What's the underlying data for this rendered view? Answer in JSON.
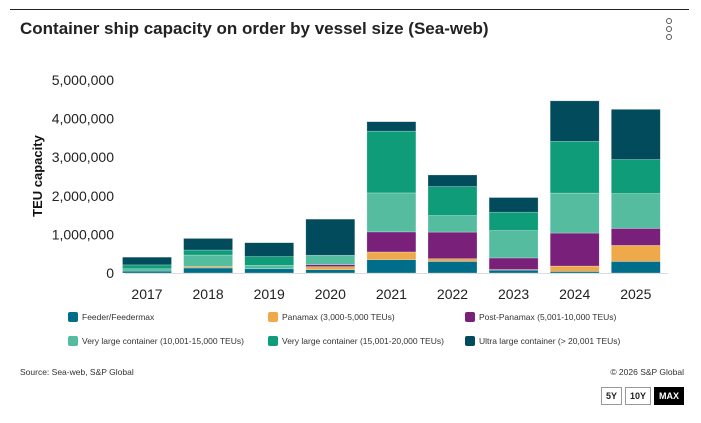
{
  "title": "Container ship capacity on order by vessel size (Sea-web)",
  "menu_icon": "kebab-menu-icon",
  "source": "Source: Sea-web, S&P Global",
  "copyright": "© 2026 S&P Global",
  "range_buttons": [
    {
      "label": "5Y",
      "active": false
    },
    {
      "label": "10Y",
      "active": false
    },
    {
      "label": "MAX",
      "active": true
    }
  ],
  "chart_data": {
    "type": "bar",
    "stacked": true,
    "title": "Container ship capacity on order by vessel size (Sea-web)",
    "xlabel": "",
    "ylabel": "TEU capacity",
    "ylim": [
      0,
      5000000
    ],
    "yticks": [
      0,
      1000000,
      2000000,
      3000000,
      4000000,
      5000000
    ],
    "ytick_labels": [
      "0",
      "1,000,000",
      "2,000,000",
      "3,000,000",
      "4,000,000",
      "5,000,000"
    ],
    "grid": false,
    "legend_position": "bottom",
    "categories": [
      "2017",
      "2018",
      "2019",
      "2020",
      "2021",
      "2022",
      "2023",
      "2024",
      "2025"
    ],
    "series": [
      {
        "name": "Feeder/Feedermax",
        "color": "#006e8a",
        "values": [
          50000,
          130000,
          110000,
          85000,
          345000,
          300000,
          75000,
          40000,
          300000
        ]
      },
      {
        "name": "Panamax (3,000-5,000 TEUs)",
        "color": "#f0a94a",
        "values": [
          0,
          35000,
          0,
          80000,
          200000,
          70000,
          15000,
          140000,
          415000
        ]
      },
      {
        "name": "Post-Panamax (5,001-10,000 TEUs)",
        "color": "#78207a",
        "values": [
          0,
          0,
          0,
          50000,
          520000,
          690000,
          300000,
          855000,
          440000
        ]
      },
      {
        "name": "Very large container (10,001-15,000 TEUs)",
        "color": "#55bca0",
        "values": [
          60000,
          300000,
          90000,
          245000,
          1010000,
          430000,
          710000,
          1035000,
          905000
        ]
      },
      {
        "name": "Very large container (15,001-20,000 TEUs)",
        "color": "#0f9c78",
        "values": [
          100000,
          130000,
          225000,
          0,
          1600000,
          750000,
          475000,
          1340000,
          880000
        ]
      },
      {
        "name": "Ultra large container (> 20,001 TEUs)",
        "color": "#024b5c",
        "values": [
          200000,
          300000,
          360000,
          935000,
          245000,
          300000,
          380000,
          1050000,
          1300000
        ]
      }
    ]
  }
}
